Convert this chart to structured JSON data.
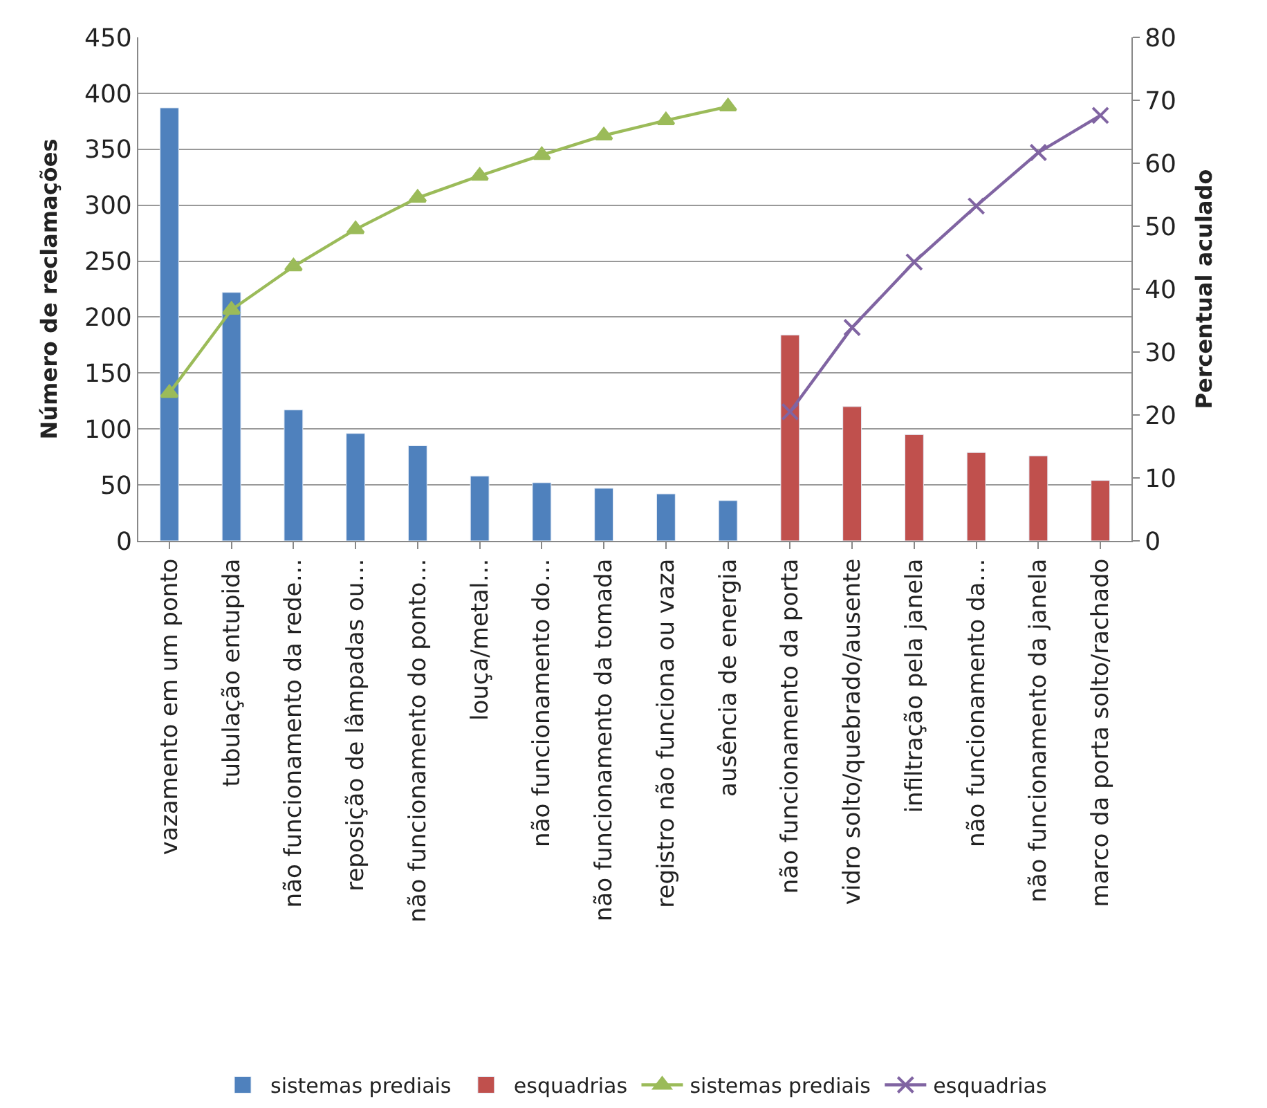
{
  "chart_data": {
    "type": "bar",
    "ylabel": "Número de reclamações",
    "y2label": "Percentual aculado",
    "categories": [
      "vazamento em um ponto",
      "tubulação entupida",
      "não funcionamento da rede…",
      "reposição de lâmpadas ou…",
      "não funcionamento do ponto…",
      "louça/metal…",
      "não funcionamento do…",
      "não funcionamento da tomada",
      "registro não funciona ou vaza",
      "ausência de energia",
      "não funcionamento da porta",
      "vidro solto/quebrado/ausente",
      "infiltração pela janela",
      "não funcionamento da…",
      "não funcionamento da janela",
      "marco da porta solto/rachado"
    ],
    "series": [
      {
        "name": "sistemas prediais",
        "color": "#4f81bd",
        "values": [
          387,
          222,
          117,
          96,
          85,
          58,
          52,
          47,
          42,
          36,
          null,
          null,
          null,
          null,
          null,
          null
        ]
      },
      {
        "name": "esquadrias",
        "color": "#c0504d",
        "values": [
          null,
          null,
          null,
          null,
          null,
          null,
          null,
          null,
          null,
          null,
          184,
          120,
          95,
          79,
          76,
          54
        ]
      },
      {
        "name": "sistemas prediais",
        "type": "line",
        "axis": "y2",
        "marker": "triangle",
        "color": "#9bbb59",
        "values": [
          23.5,
          36.7,
          43.6,
          49.5,
          54.5,
          58,
          61.3,
          64.4,
          66.8,
          69,
          null,
          null,
          null,
          null,
          null,
          null
        ]
      },
      {
        "name": "esquadrias",
        "type": "line",
        "axis": "y2",
        "marker": "cross",
        "color": "#8064a2",
        "values": [
          null,
          null,
          null,
          null,
          null,
          null,
          null,
          null,
          null,
          null,
          20.5,
          33.9,
          44.3,
          53.2,
          61.7,
          67.6
        ]
      }
    ],
    "ylim": [
      0,
      450
    ],
    "yticks": [
      0,
      50,
      100,
      150,
      200,
      250,
      300,
      350,
      400,
      450
    ],
    "y2lim": [
      0,
      80
    ],
    "y2ticks": [
      0,
      10,
      20,
      30,
      40,
      50,
      60,
      70,
      80
    ],
    "grid": "y",
    "legend": "bottom"
  }
}
